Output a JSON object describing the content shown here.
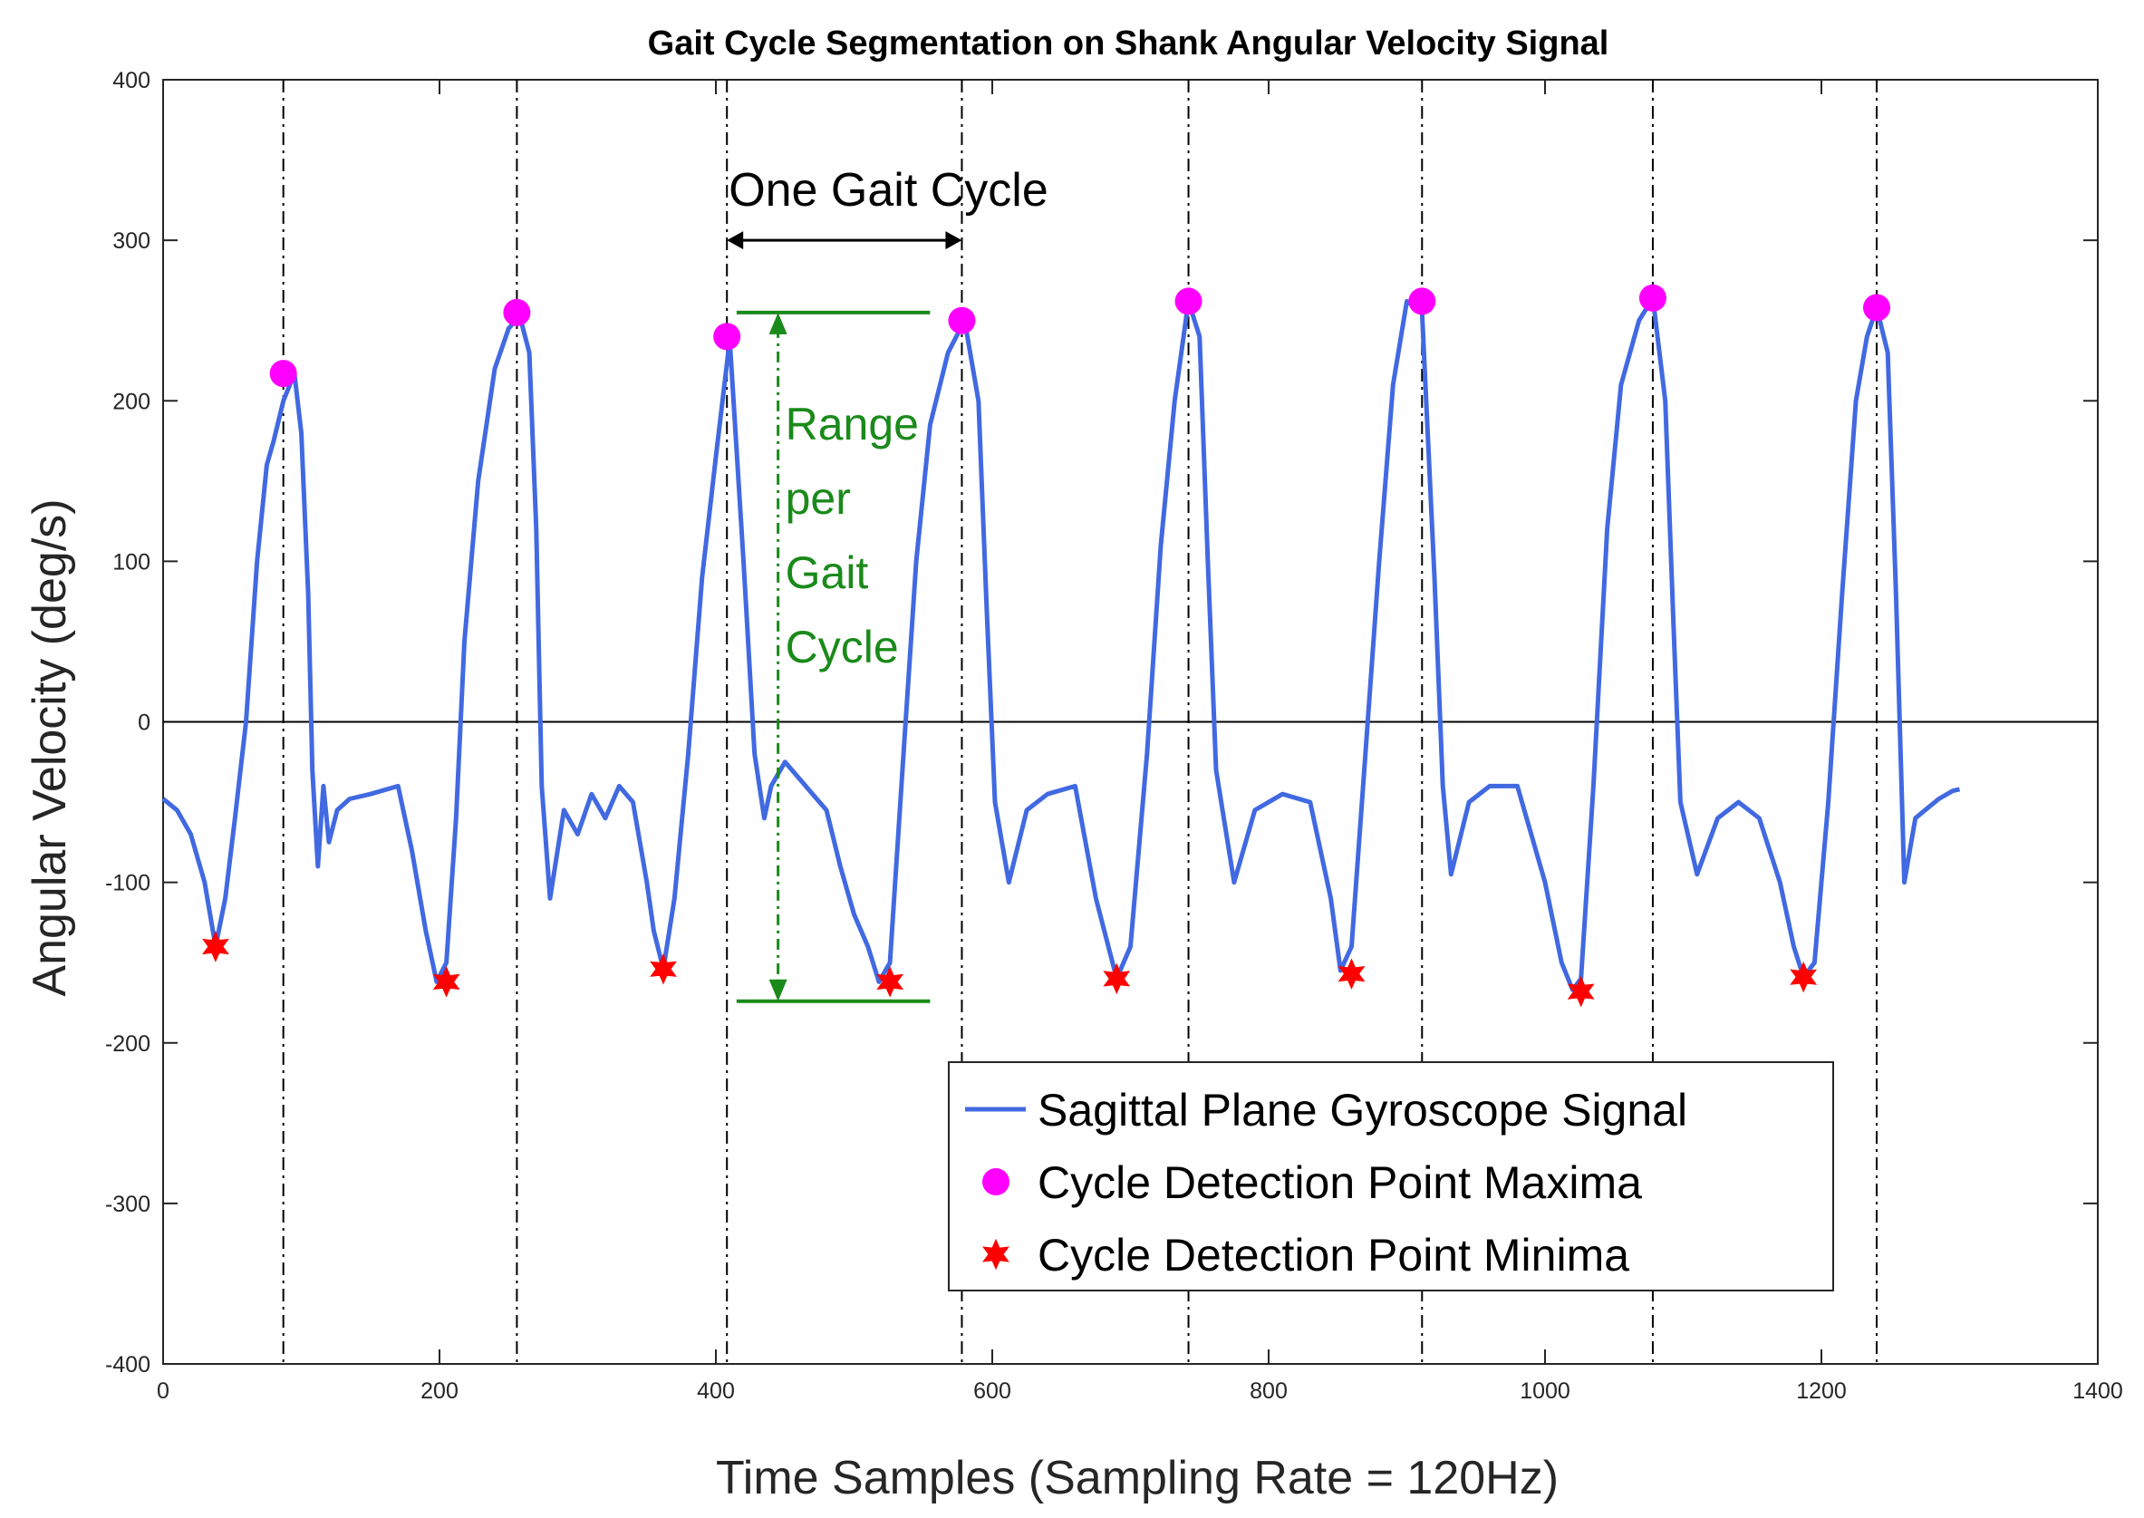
{
  "chart_data": {
    "type": "line",
    "title": "Gait Cycle Segmentation on Shank Angular Velocity Signal",
    "xlabel": "Time Samples (Sampling Rate = 120Hz)",
    "ylabel": "Angular Velocity (deg/s)",
    "xlim": [
      0,
      1400
    ],
    "ylim": [
      -400,
      400
    ],
    "xticks": [
      0,
      200,
      400,
      600,
      800,
      1000,
      1200,
      1400
    ],
    "yticks": [
      -400,
      -300,
      -200,
      -100,
      0,
      100,
      200,
      300,
      400
    ],
    "series": [
      {
        "name": "Sagittal Plane Gyroscope Signal",
        "color": "#4169e1",
        "x": [
          0,
          10,
          20,
          30,
          38,
          45,
          52,
          60,
          68,
          75,
          80,
          87,
          95,
          100,
          105,
          108,
          112,
          116,
          120,
          126,
          135,
          150,
          170,
          180,
          190,
          198,
          205,
          212,
          218,
          228,
          240,
          250,
          258,
          265,
          270,
          274,
          280,
          290,
          300,
          310,
          320,
          330,
          340,
          350,
          355,
          362,
          370,
          380,
          390,
          400,
          410,
          420,
          428,
          435,
          440,
          450,
          460,
          470,
          480,
          490,
          500,
          510,
          518,
          526,
          535,
          545,
          555,
          568,
          580,
          590,
          596,
          602,
          612,
          625,
          640,
          660,
          675,
          690,
          700,
          712,
          722,
          732,
          742,
          750,
          756,
          762,
          775,
          790,
          810,
          830,
          845,
          852,
          860,
          870,
          880,
          890,
          900,
          911,
          920,
          926,
          932,
          945,
          960,
          980,
          1000,
          1012,
          1020,
          1026,
          1035,
          1045,
          1055,
          1068,
          1078,
          1087,
          1093,
          1098,
          1110,
          1125,
          1140,
          1155,
          1170,
          1180,
          1187,
          1195,
          1205,
          1215,
          1225,
          1233,
          1240,
          1248,
          1254,
          1260,
          1268,
          1275,
          1285,
          1295,
          1300
        ],
        "y": [
          -48,
          -55,
          -70,
          -100,
          -140,
          -110,
          -60,
          0,
          100,
          160,
          175,
          200,
          217,
          180,
          80,
          -30,
          -90,
          -40,
          -75,
          -55,
          -48,
          -45,
          -40,
          -80,
          -130,
          -162,
          -150,
          -60,
          50,
          150,
          220,
          245,
          253,
          230,
          120,
          -40,
          -110,
          -55,
          -70,
          -45,
          -60,
          -40,
          -50,
          -100,
          -130,
          -154,
          -110,
          -20,
          90,
          165,
          238,
          100,
          -20,
          -60,
          -40,
          -25,
          -35,
          -45,
          -55,
          -90,
          -120,
          -140,
          -162,
          -150,
          -30,
          100,
          185,
          230,
          250,
          200,
          70,
          -50,
          -100,
          -55,
          -45,
          -40,
          -110,
          -160,
          -140,
          -20,
          110,
          200,
          262,
          240,
          100,
          -30,
          -100,
          -55,
          -45,
          -50,
          -110,
          -155,
          -140,
          -20,
          100,
          210,
          262,
          255,
          90,
          -40,
          -95,
          -50,
          -40,
          -40,
          -100,
          -150,
          -167,
          -160,
          -40,
          120,
          210,
          250,
          264,
          200,
          60,
          -50,
          -95,
          -60,
          -50,
          -60,
          -100,
          -140,
          -159,
          -150,
          -50,
          80,
          200,
          240,
          258,
          230,
          80,
          -100,
          -60,
          -55,
          -48,
          -43,
          -42
        ]
      },
      {
        "name": "Cycle Detection Point Maxima",
        "color": "#ff00ff",
        "marker": "circle",
        "x": [
          87,
          256,
          408,
          578,
          742,
          911,
          1078,
          1240
        ],
        "y": [
          217,
          255,
          240,
          250,
          262,
          262,
          264,
          258
        ]
      },
      {
        "name": "Cycle Detection Point Minima",
        "color": "#ff0000",
        "marker": "star",
        "x": [
          38,
          205,
          362,
          526,
          690,
          860,
          1026,
          1187
        ],
        "y": [
          -140,
          -162,
          -154,
          -162,
          -160,
          -157,
          -168,
          -159
        ]
      }
    ],
    "cycle_boundaries": [
      87,
      256,
      408,
      578,
      742,
      911,
      1078,
      1240
    ],
    "annotations": {
      "one_cycle": {
        "label": "One Gait Cycle",
        "x_start": 408,
        "x_end": 578,
        "y": 300
      },
      "range": {
        "lines": [
          "Range",
          "per",
          "Gait",
          "Cycle"
        ],
        "y_top": 255,
        "y_bottom": -174,
        "x": 445,
        "x_line_start": 415,
        "x_line_end": 555
      }
    },
    "legend": {
      "position": "bottom-right",
      "entries": [
        "Sagittal Plane Gyroscope Signal",
        "Cycle Detection Point Maxima",
        "Cycle Detection Point Minima"
      ]
    }
  }
}
